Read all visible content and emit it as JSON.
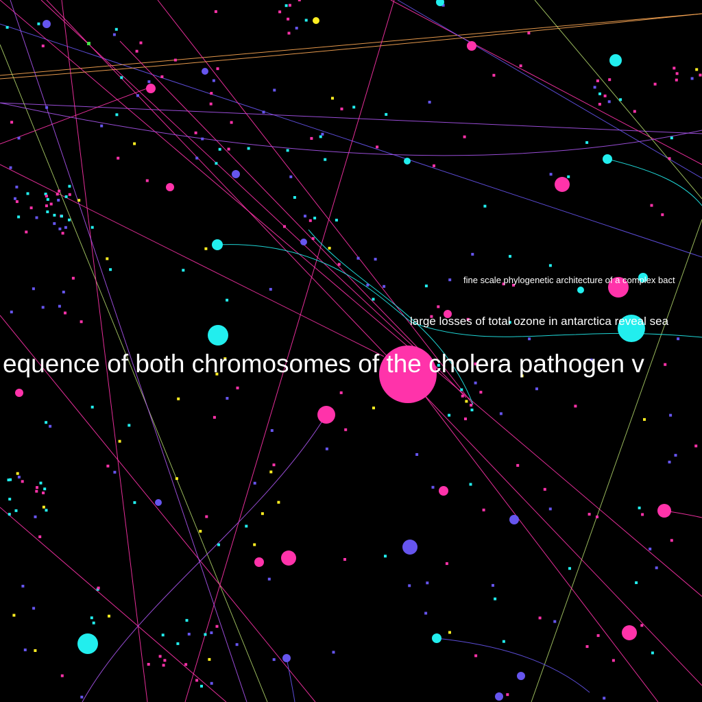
{
  "graph": {
    "background": "#000000",
    "colors": {
      "pink": "#ff33aa",
      "cyan": "#22eeee",
      "violet": "#6655ee",
      "yellow": "#ffee22",
      "orange": "#ffaa55",
      "purple": "#aa55ee",
      "olive": "#aacc66",
      "green": "#44dd44",
      "white": "#ffffff"
    },
    "labels": [
      {
        "id": "label-cholera",
        "text": "equence of both chromosomes of the cholera pathogen v"
      },
      {
        "id": "label-ozone",
        "text": "large losses of total ozone in antarctica reveal sea"
      },
      {
        "id": "label-phylogenetic",
        "text": "fine scale phylogenetic architecture of a complex bact"
      }
    ]
  }
}
